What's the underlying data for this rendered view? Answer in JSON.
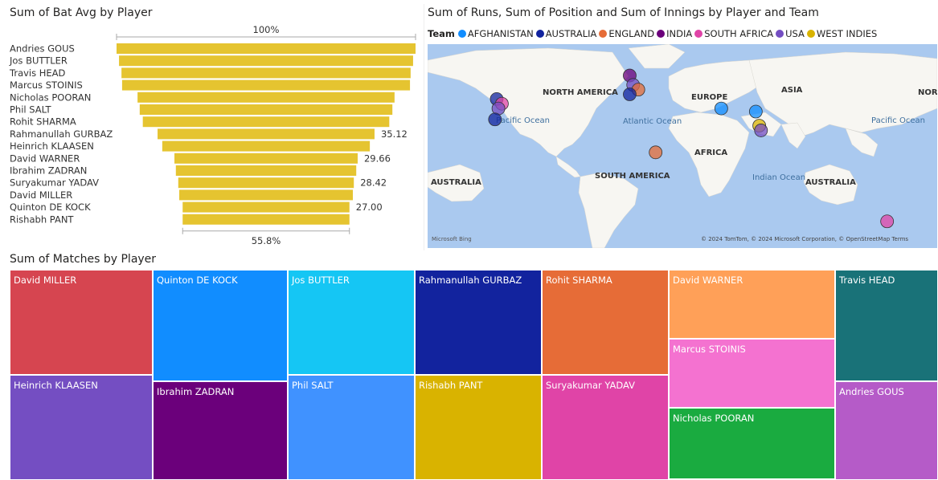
{
  "funnel": {
    "title": "Sum of Bat Avg by Player",
    "top_label": "100%",
    "bottom_label": "55.8%",
    "bar_color": "#E5C430"
  },
  "map": {
    "title": "Sum of Runs, Sum of Position and Sum of Innings by Player and Team",
    "legend_title": "Team",
    "teams": [
      {
        "name": "AFGHANISTAN",
        "color": "#118DFF"
      },
      {
        "name": "AUSTRALIA",
        "color": "#12239E"
      },
      {
        "name": "ENGLAND",
        "color": "#E66C37"
      },
      {
        "name": "INDIA",
        "color": "#6B007B"
      },
      {
        "name": "SOUTH AFRICA",
        "color": "#E044A7"
      },
      {
        "name": "USA",
        "color": "#744EC2"
      },
      {
        "name": "WEST INDIES",
        "color": "#D9B300"
      }
    ],
    "place_labels": [
      "NORTH AMERICA",
      "EUROPE",
      "ASIA",
      "NORT",
      "Pacific Ocean",
      "Atlantic Ocean",
      "AFRICA",
      "SOUTH AMERICA",
      "AUSTRALIA",
      "Indian Ocean",
      "AUSTRALIA",
      "Pacific Ocean"
    ],
    "attribution": "© 2024 TomTom, © 2024 Microsoft Corporation, © OpenStreetMap  Terms",
    "logo": "Microsoft Bing"
  },
  "treemap": {
    "title": "Sum of Matches by Player"
  },
  "chart_data": [
    {
      "type": "bar",
      "subtype": "funnel",
      "title": "Sum of Bat Avg by Player",
      "categories": [
        "Andries GOUS",
        "Jos BUTTLER",
        "Travis HEAD",
        "Marcus STOINIS",
        "Nicholas POORAN",
        "Phil SALT",
        "Rohit SHARMA",
        "Rahmanullah GURBAZ",
        "Heinrich KLAASEN",
        "David WARNER",
        "Ibrahim ZADRAN",
        "Suryakumar YADAV",
        "David MILLER",
        "Quinton DE KOCK",
        "Rishabh PANT"
      ],
      "values": [
        48.4,
        47.6,
        46.8,
        46.6,
        41.6,
        40.9,
        39.9,
        35.12,
        33.6,
        29.66,
        29.2,
        28.42,
        28.1,
        27.0,
        27.0
      ],
      "data_labels": [
        "",
        "",
        "",
        "",
        "",
        "",
        "",
        "35.12",
        "",
        "29.66",
        "",
        "28.42",
        "",
        "27.00",
        ""
      ]
    },
    {
      "type": "scatter",
      "subtype": "bubble-map",
      "title": "Sum of Runs, Sum of Position and Sum of Innings by Player and Team",
      "legend": [
        "AFGHANISTAN",
        "AUSTRALIA",
        "ENGLAND",
        "INDIA",
        "SOUTH AFRICA",
        "USA",
        "WEST INDIES"
      ],
      "points": [
        {
          "team": "AUSTRALIA",
          "lon": -80,
          "lat": 40
        },
        {
          "team": "SOUTH AFRICA",
          "lon": -77,
          "lat": 37
        },
        {
          "team": "USA",
          "lon": -79,
          "lat": 34
        },
        {
          "team": "AUSTRALIA",
          "lon": -81,
          "lat": 27
        },
        {
          "team": "INDIA",
          "lon": -3,
          "lat": 55
        },
        {
          "team": "USA",
          "lon": -1,
          "lat": 49
        },
        {
          "team": "ENGLAND",
          "lon": 2,
          "lat": 46
        },
        {
          "team": "AUSTRALIA",
          "lon": -3,
          "lat": 43
        },
        {
          "team": "AFGHANISTAN",
          "lon": 50,
          "lat": 34
        },
        {
          "team": "AFGHANISTAN",
          "lon": 70,
          "lat": 32
        },
        {
          "team": "WEST INDIES",
          "lon": 72,
          "lat": 23
        },
        {
          "team": "USA",
          "lon": 73,
          "lat": 20
        },
        {
          "team": "ENGLAND",
          "lon": 12,
          "lat": 6
        },
        {
          "team": "SOUTH AFRICA",
          "lon": 146,
          "lat": -38
        }
      ]
    },
    {
      "type": "heatmap",
      "subtype": "treemap",
      "title": "Sum of Matches by Player",
      "tiles": [
        {
          "label": "David MILLER",
          "color": "#D64550"
        },
        {
          "label": "Heinrich KLAASEN",
          "color": "#744EC2"
        },
        {
          "label": "Quinton DE KOCK",
          "color": "#118DFF"
        },
        {
          "label": "Ibrahim ZADRAN",
          "color": "#6B007B"
        },
        {
          "label": "Jos BUTTLER",
          "color": "#15C6F4"
        },
        {
          "label": "Phil SALT",
          "color": "#4092FF"
        },
        {
          "label": "Rahmanullah GURBAZ",
          "color": "#12239E"
        },
        {
          "label": "Rishabh PANT",
          "color": "#D9B300"
        },
        {
          "label": "Rohit SHARMA",
          "color": "#E66C37"
        },
        {
          "label": "Suryakumar YADAV",
          "color": "#E044A7"
        },
        {
          "label": "David WARNER",
          "color": "#FFA058"
        },
        {
          "label": "Marcus STOINIS",
          "color": "#F472D0"
        },
        {
          "label": "Nicholas POORAN",
          "color": "#1AAB40"
        },
        {
          "label": "Travis HEAD",
          "color": "#197278"
        },
        {
          "label": "Andries GOUS",
          "color": "#B55BC8"
        }
      ]
    }
  ]
}
